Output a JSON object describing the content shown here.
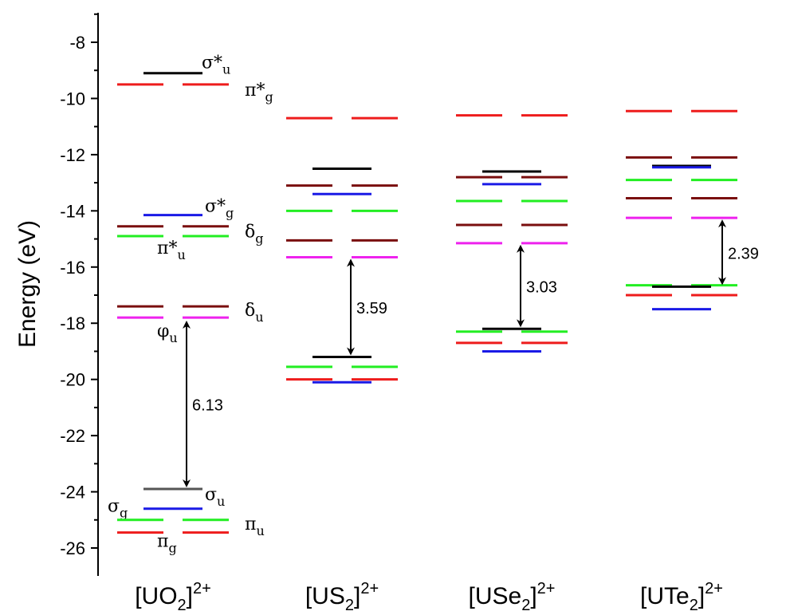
{
  "chart_data": {
    "type": "energy-level-diagram",
    "ylabel": "Energy (eV)",
    "ylim": [
      -27,
      -7
    ],
    "yticks": [
      -8,
      -10,
      -12,
      -14,
      -16,
      -18,
      -20,
      -22,
      -24,
      -26
    ],
    "ytick_labels": [
      "-8",
      "-10",
      "-12",
      "-14",
      "-16",
      "-18",
      "-20",
      "-22",
      "-24",
      "-26"
    ],
    "colors": {
      "red": "#ee1c1c",
      "black": "#000000",
      "gray": "#555555",
      "blue": "#1a1ae6",
      "green": "#22ee22",
      "darkred": "#7a0e0e",
      "magenta": "#ee22ee"
    },
    "categories": [
      {
        "label": "[UO",
        "sub": "2",
        "bracket": "]",
        "sup": "2+",
        "levels": [
          {
            "energy": -9.1,
            "color": "black",
            "split": false,
            "name": "σ*",
            "name_sub": "u"
          },
          {
            "energy": -9.5,
            "color": "red",
            "split": true,
            "name": "π*",
            "name_sub": "g"
          },
          {
            "energy": -14.15,
            "color": "blue",
            "split": false,
            "name": "σ*",
            "name_sub": "g"
          },
          {
            "energy": -14.55,
            "color": "darkred",
            "split": true,
            "name": "δ",
            "name_sub": "g"
          },
          {
            "energy": -14.9,
            "color": "green",
            "split": true,
            "name": "π*",
            "name_sub": "u"
          },
          {
            "energy": -17.4,
            "color": "darkred",
            "split": true,
            "name": "δ",
            "name_sub": "u"
          },
          {
            "energy": -17.8,
            "color": "magenta",
            "split": true,
            "name": "φ",
            "name_sub": "u"
          },
          {
            "energy": -23.9,
            "color": "gray",
            "split": false,
            "name": "σ",
            "name_sub": "u"
          },
          {
            "energy": -24.6,
            "color": "blue",
            "split": false,
            "name": "σ",
            "name_sub": "g"
          },
          {
            "energy": -25.0,
            "color": "green",
            "split": true,
            "name": "π",
            "name_sub": "u"
          },
          {
            "energy": -25.45,
            "color": "red",
            "split": true,
            "name": "π",
            "name_sub": "g"
          }
        ],
        "gap": {
          "value": "6.13",
          "from": -17.85,
          "to": -23.9
        }
      },
      {
        "label": "[US",
        "sub": "2",
        "bracket": "]",
        "sup": "2+",
        "levels": [
          {
            "energy": -10.7,
            "color": "red",
            "split": true
          },
          {
            "energy": -12.5,
            "color": "black",
            "split": false
          },
          {
            "energy": -13.1,
            "color": "darkred",
            "split": true
          },
          {
            "energy": -13.4,
            "color": "blue",
            "split": false
          },
          {
            "energy": -14.0,
            "color": "green",
            "split": true
          },
          {
            "energy": -15.05,
            "color": "darkred",
            "split": true
          },
          {
            "energy": -15.65,
            "color": "magenta",
            "split": true
          },
          {
            "energy": -19.2,
            "color": "black",
            "split": false
          },
          {
            "energy": -19.55,
            "color": "green",
            "split": true
          },
          {
            "energy": -20.0,
            "color": "red",
            "split": true
          },
          {
            "energy": -20.1,
            "color": "blue",
            "split": false
          }
        ],
        "gap": {
          "value": "3.59",
          "from": -15.65,
          "to": -19.2
        }
      },
      {
        "label": "[USe",
        "sub": "2",
        "bracket": "]",
        "sup": "2+",
        "levels": [
          {
            "energy": -10.6,
            "color": "red",
            "split": true
          },
          {
            "energy": -12.6,
            "color": "black",
            "split": false
          },
          {
            "energy": -12.8,
            "color": "darkred",
            "split": true
          },
          {
            "energy": -13.05,
            "color": "blue",
            "split": false
          },
          {
            "energy": -13.65,
            "color": "green",
            "split": true
          },
          {
            "energy": -14.5,
            "color": "darkred",
            "split": true
          },
          {
            "energy": -15.15,
            "color": "magenta",
            "split": true
          },
          {
            "energy": -18.2,
            "color": "black",
            "split": false
          },
          {
            "energy": -18.3,
            "color": "green",
            "split": true
          },
          {
            "energy": -18.7,
            "color": "red",
            "split": true
          },
          {
            "energy": -19.0,
            "color": "blue",
            "split": false
          }
        ],
        "gap": {
          "value": "3.03",
          "from": -15.15,
          "to": -18.2
        }
      },
      {
        "label": "[UTe",
        "sub": "2",
        "bracket": "]",
        "sup": "2+",
        "levels": [
          {
            "energy": -10.45,
            "color": "red",
            "split": true
          },
          {
            "energy": -12.1,
            "color": "darkred",
            "split": true
          },
          {
            "energy": -12.4,
            "color": "black",
            "split": false
          },
          {
            "energy": -12.45,
            "color": "blue",
            "split": false
          },
          {
            "energy": -12.9,
            "color": "green",
            "split": true
          },
          {
            "energy": -13.55,
            "color": "darkred",
            "split": true
          },
          {
            "energy": -14.25,
            "color": "magenta",
            "split": true
          },
          {
            "energy": -16.65,
            "color": "green",
            "split": true
          },
          {
            "energy": -16.7,
            "color": "black",
            "split": false
          },
          {
            "energy": -17.0,
            "color": "red",
            "split": true
          },
          {
            "energy": -17.5,
            "color": "blue",
            "split": false
          }
        ],
        "gap": {
          "value": "2.39",
          "from": -14.25,
          "to": -16.7
        }
      }
    ]
  }
}
